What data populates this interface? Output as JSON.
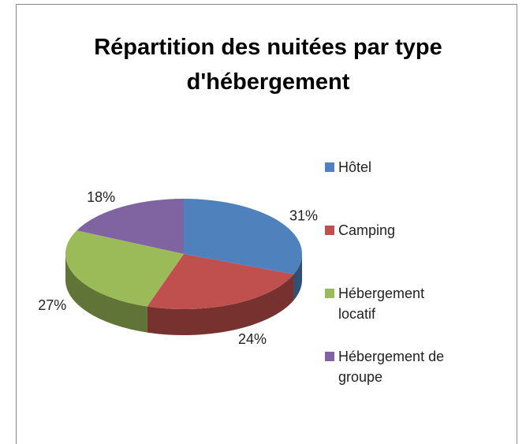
{
  "chart_data": {
    "type": "pie3d",
    "title": "Répartition des nuitées par type d'hébergement",
    "categories": [
      "Hôtel",
      "Camping",
      "Hébergement locatif",
      "Hébergement de groupe"
    ],
    "values": [
      31,
      24,
      27,
      18
    ],
    "value_labels": [
      "31%",
      "24%",
      "27%",
      "18%"
    ],
    "colors": [
      "#4f81bd",
      "#c0504d",
      "#9bbb59",
      "#8064a2"
    ],
    "legend": "right"
  }
}
